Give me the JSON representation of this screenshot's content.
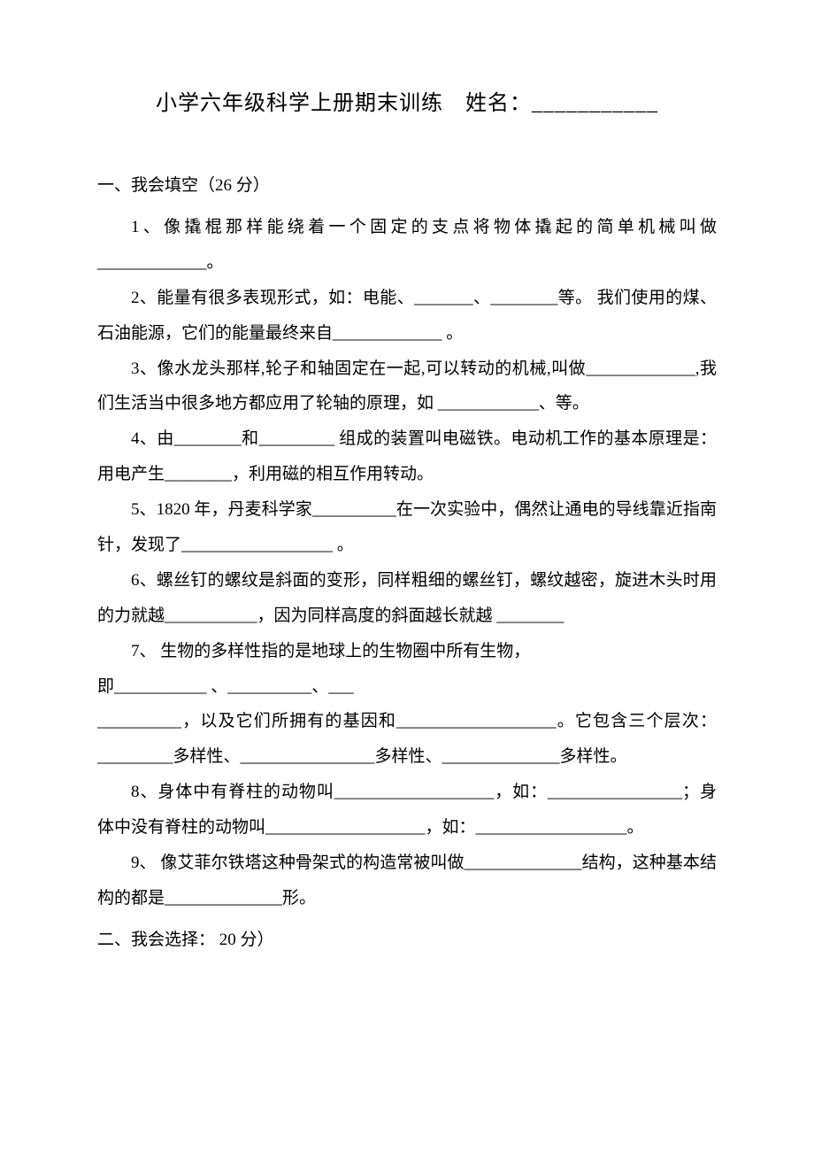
{
  "title": "小学六年级科学上册期末训练　姓名：___________",
  "section1": {
    "heading": "一、我会填空（26 分）",
    "q1": "1、像撬棍那样能绕着一个固定的支点将物体撬起的简单机械叫做_____________。",
    "q2": "2、能量有很多表现形式，如：电能、_______、________等。 我们使用的煤、石油能源，它们的能量最终来自_____________ 。",
    "q3": "3、像水龙头那样,轮子和轴固定在一起,可以转动的机械,叫做_____________,我们生活当中很多地方都应用了轮轴的原理，如 ____________、等。",
    "q4": "4、由________和_________ 组成的装置叫电磁铁。电动机工作的基本原理是：用电产生________，利用磁的相互作用转动。",
    "q5": "5、1820 年，丹麦科学家__________在一次实验中，偶然让通电的导线靠近指南针，发现了__________________ 。",
    "q6": "6、螺丝钉的螺纹是斜面的变形，同样粗细的螺丝钉，螺纹越密，旋进木头时用的力就越___________，因为同样高度的斜面越长就越 ________",
    "q7_line1": "7、 生物的多样性指的是地球上的生物圈中所有生物，",
    "q7_line2": "即___________ 、__________、___",
    "q7_line3": "__________，以及它们所拥有的基因和___________________。它包含三个层次：_________多样性、________________多样性、______________多样性。",
    "q8": "8、身体中有脊柱的动物叫___________________，如：________________；身体中没有脊柱的动物叫___________________，如：__________________。",
    "q9": "9、 像艾菲尔铁塔这种骨架式的构造常被叫做______________结构，这种基本结构的都是______________形。"
  },
  "section2": {
    "heading": "二、我会选择： 20 分）"
  }
}
